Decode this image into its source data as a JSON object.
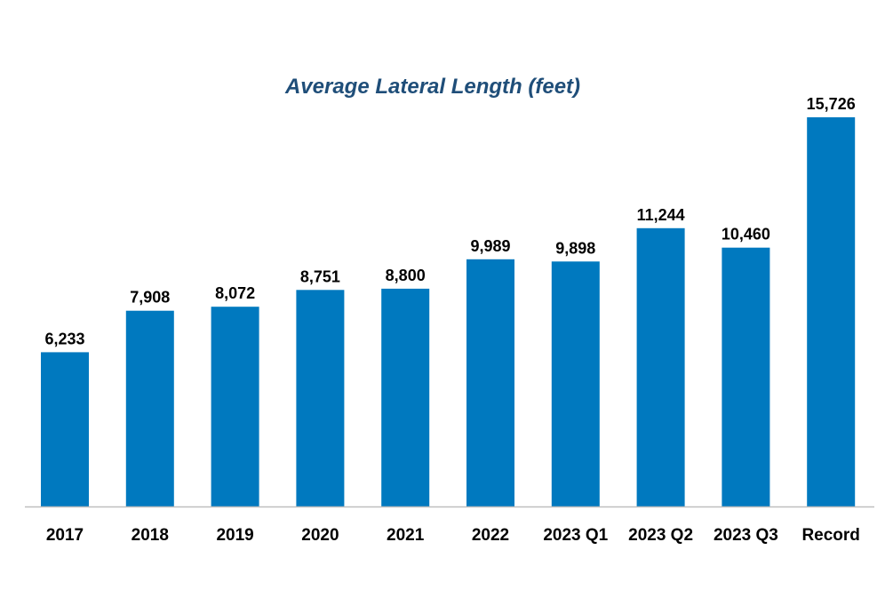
{
  "chart_data": {
    "type": "bar",
    "title": "Average Lateral Length  (feet)",
    "xlabel": "",
    "ylabel": "",
    "categories": [
      "2017",
      "2018",
      "2019",
      "2020",
      "2021",
      "2022",
      "2023 Q1",
      "2023 Q2",
      "2023 Q3",
      "Record"
    ],
    "values": [
      6233,
      7908,
      8072,
      8751,
      8800,
      9989,
      9898,
      11244,
      10460,
      15726
    ],
    "value_labels": [
      "6,233",
      "7,908",
      "8,072",
      "8,751",
      "8,800",
      "9,989",
      "9,898",
      "11,244",
      "10,460",
      "15,726"
    ],
    "ylim": [
      0,
      17000
    ],
    "grid": false,
    "legend": "none",
    "colors": {
      "bar": "#0079BF",
      "title": "#1F4E79",
      "axis": "#BFBFBF"
    }
  }
}
